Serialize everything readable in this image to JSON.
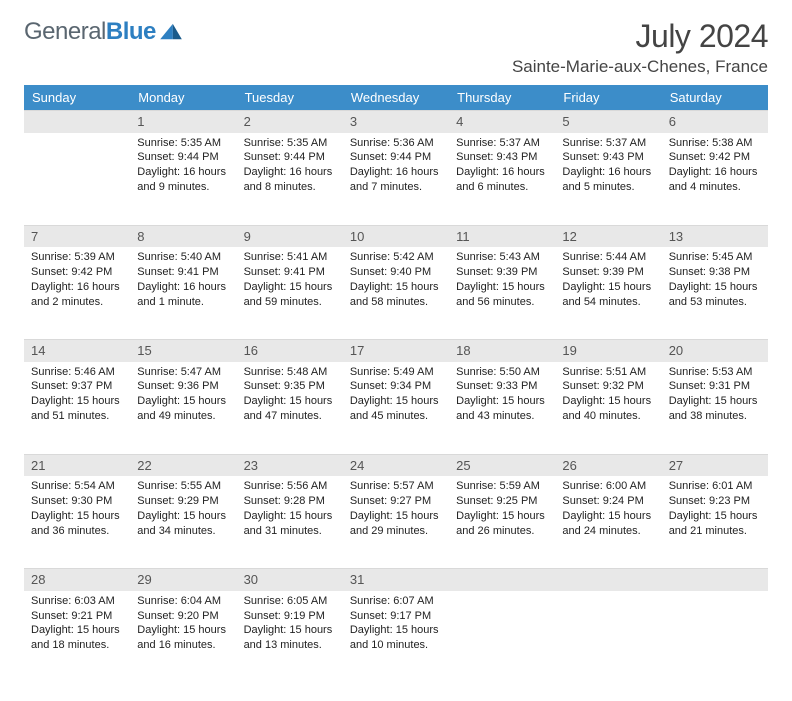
{
  "logo": {
    "word1": "General",
    "word2": "Blue"
  },
  "title": "July 2024",
  "location": "Sainte-Marie-aux-Chenes, France",
  "colors": {
    "header_bg": "#3c8dc9",
    "header_text": "#ffffff",
    "daynum_bg": "#e8e8e8",
    "logo_gray": "#5a6670",
    "logo_blue": "#2d7fc1",
    "title_color": "#444444"
  },
  "day_labels": [
    "Sunday",
    "Monday",
    "Tuesday",
    "Wednesday",
    "Thursday",
    "Friday",
    "Saturday"
  ],
  "weeks": [
    [
      null,
      {
        "n": "1",
        "sr": "Sunrise: 5:35 AM",
        "ss": "Sunset: 9:44 PM",
        "d1": "Daylight: 16 hours",
        "d2": "and 9 minutes."
      },
      {
        "n": "2",
        "sr": "Sunrise: 5:35 AM",
        "ss": "Sunset: 9:44 PM",
        "d1": "Daylight: 16 hours",
        "d2": "and 8 minutes."
      },
      {
        "n": "3",
        "sr": "Sunrise: 5:36 AM",
        "ss": "Sunset: 9:44 PM",
        "d1": "Daylight: 16 hours",
        "d2": "and 7 minutes."
      },
      {
        "n": "4",
        "sr": "Sunrise: 5:37 AM",
        "ss": "Sunset: 9:43 PM",
        "d1": "Daylight: 16 hours",
        "d2": "and 6 minutes."
      },
      {
        "n": "5",
        "sr": "Sunrise: 5:37 AM",
        "ss": "Sunset: 9:43 PM",
        "d1": "Daylight: 16 hours",
        "d2": "and 5 minutes."
      },
      {
        "n": "6",
        "sr": "Sunrise: 5:38 AM",
        "ss": "Sunset: 9:42 PM",
        "d1": "Daylight: 16 hours",
        "d2": "and 4 minutes."
      }
    ],
    [
      {
        "n": "7",
        "sr": "Sunrise: 5:39 AM",
        "ss": "Sunset: 9:42 PM",
        "d1": "Daylight: 16 hours",
        "d2": "and 2 minutes."
      },
      {
        "n": "8",
        "sr": "Sunrise: 5:40 AM",
        "ss": "Sunset: 9:41 PM",
        "d1": "Daylight: 16 hours",
        "d2": "and 1 minute."
      },
      {
        "n": "9",
        "sr": "Sunrise: 5:41 AM",
        "ss": "Sunset: 9:41 PM",
        "d1": "Daylight: 15 hours",
        "d2": "and 59 minutes."
      },
      {
        "n": "10",
        "sr": "Sunrise: 5:42 AM",
        "ss": "Sunset: 9:40 PM",
        "d1": "Daylight: 15 hours",
        "d2": "and 58 minutes."
      },
      {
        "n": "11",
        "sr": "Sunrise: 5:43 AM",
        "ss": "Sunset: 9:39 PM",
        "d1": "Daylight: 15 hours",
        "d2": "and 56 minutes."
      },
      {
        "n": "12",
        "sr": "Sunrise: 5:44 AM",
        "ss": "Sunset: 9:39 PM",
        "d1": "Daylight: 15 hours",
        "d2": "and 54 minutes."
      },
      {
        "n": "13",
        "sr": "Sunrise: 5:45 AM",
        "ss": "Sunset: 9:38 PM",
        "d1": "Daylight: 15 hours",
        "d2": "and 53 minutes."
      }
    ],
    [
      {
        "n": "14",
        "sr": "Sunrise: 5:46 AM",
        "ss": "Sunset: 9:37 PM",
        "d1": "Daylight: 15 hours",
        "d2": "and 51 minutes."
      },
      {
        "n": "15",
        "sr": "Sunrise: 5:47 AM",
        "ss": "Sunset: 9:36 PM",
        "d1": "Daylight: 15 hours",
        "d2": "and 49 minutes."
      },
      {
        "n": "16",
        "sr": "Sunrise: 5:48 AM",
        "ss": "Sunset: 9:35 PM",
        "d1": "Daylight: 15 hours",
        "d2": "and 47 minutes."
      },
      {
        "n": "17",
        "sr": "Sunrise: 5:49 AM",
        "ss": "Sunset: 9:34 PM",
        "d1": "Daylight: 15 hours",
        "d2": "and 45 minutes."
      },
      {
        "n": "18",
        "sr": "Sunrise: 5:50 AM",
        "ss": "Sunset: 9:33 PM",
        "d1": "Daylight: 15 hours",
        "d2": "and 43 minutes."
      },
      {
        "n": "19",
        "sr": "Sunrise: 5:51 AM",
        "ss": "Sunset: 9:32 PM",
        "d1": "Daylight: 15 hours",
        "d2": "and 40 minutes."
      },
      {
        "n": "20",
        "sr": "Sunrise: 5:53 AM",
        "ss": "Sunset: 9:31 PM",
        "d1": "Daylight: 15 hours",
        "d2": "and 38 minutes."
      }
    ],
    [
      {
        "n": "21",
        "sr": "Sunrise: 5:54 AM",
        "ss": "Sunset: 9:30 PM",
        "d1": "Daylight: 15 hours",
        "d2": "and 36 minutes."
      },
      {
        "n": "22",
        "sr": "Sunrise: 5:55 AM",
        "ss": "Sunset: 9:29 PM",
        "d1": "Daylight: 15 hours",
        "d2": "and 34 minutes."
      },
      {
        "n": "23",
        "sr": "Sunrise: 5:56 AM",
        "ss": "Sunset: 9:28 PM",
        "d1": "Daylight: 15 hours",
        "d2": "and 31 minutes."
      },
      {
        "n": "24",
        "sr": "Sunrise: 5:57 AM",
        "ss": "Sunset: 9:27 PM",
        "d1": "Daylight: 15 hours",
        "d2": "and 29 minutes."
      },
      {
        "n": "25",
        "sr": "Sunrise: 5:59 AM",
        "ss": "Sunset: 9:25 PM",
        "d1": "Daylight: 15 hours",
        "d2": "and 26 minutes."
      },
      {
        "n": "26",
        "sr": "Sunrise: 6:00 AM",
        "ss": "Sunset: 9:24 PM",
        "d1": "Daylight: 15 hours",
        "d2": "and 24 minutes."
      },
      {
        "n": "27",
        "sr": "Sunrise: 6:01 AM",
        "ss": "Sunset: 9:23 PM",
        "d1": "Daylight: 15 hours",
        "d2": "and 21 minutes."
      }
    ],
    [
      {
        "n": "28",
        "sr": "Sunrise: 6:03 AM",
        "ss": "Sunset: 9:21 PM",
        "d1": "Daylight: 15 hours",
        "d2": "and 18 minutes."
      },
      {
        "n": "29",
        "sr": "Sunrise: 6:04 AM",
        "ss": "Sunset: 9:20 PM",
        "d1": "Daylight: 15 hours",
        "d2": "and 16 minutes."
      },
      {
        "n": "30",
        "sr": "Sunrise: 6:05 AM",
        "ss": "Sunset: 9:19 PM",
        "d1": "Daylight: 15 hours",
        "d2": "and 13 minutes."
      },
      {
        "n": "31",
        "sr": "Sunrise: 6:07 AM",
        "ss": "Sunset: 9:17 PM",
        "d1": "Daylight: 15 hours",
        "d2": "and 10 minutes."
      },
      null,
      null,
      null
    ]
  ]
}
